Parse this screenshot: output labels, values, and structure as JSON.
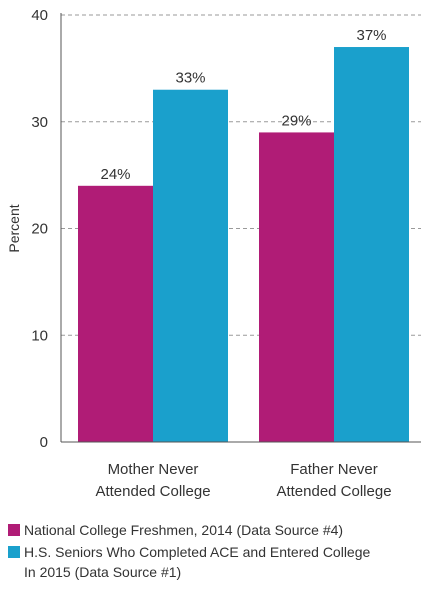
{
  "chart_data": {
    "type": "bar",
    "title": "",
    "ylabel": "Percent",
    "xlabel": "",
    "ylim": [
      0,
      40
    ],
    "yticks": [
      0,
      10,
      20,
      30,
      40
    ],
    "grid": "dashed horizontal",
    "categories": [
      [
        "Mother Never",
        "Attended College"
      ],
      [
        "Father Never",
        "Attended College"
      ]
    ],
    "series": [
      {
        "name": "National College Freshmen, 2014 (Data Source #4)",
        "color": "#b01c76",
        "values": [
          24,
          29
        ],
        "labels": [
          "24%",
          "29%"
        ]
      },
      {
        "name_lines": [
          "H.S. Seniors Who Completed ACE and Entered College",
          "In 2015 (Data Source #1)"
        ],
        "color": "#1aa0cc",
        "values": [
          33,
          37
        ],
        "labels": [
          "33%",
          "37%"
        ]
      }
    ],
    "legend_position": "bottom"
  }
}
